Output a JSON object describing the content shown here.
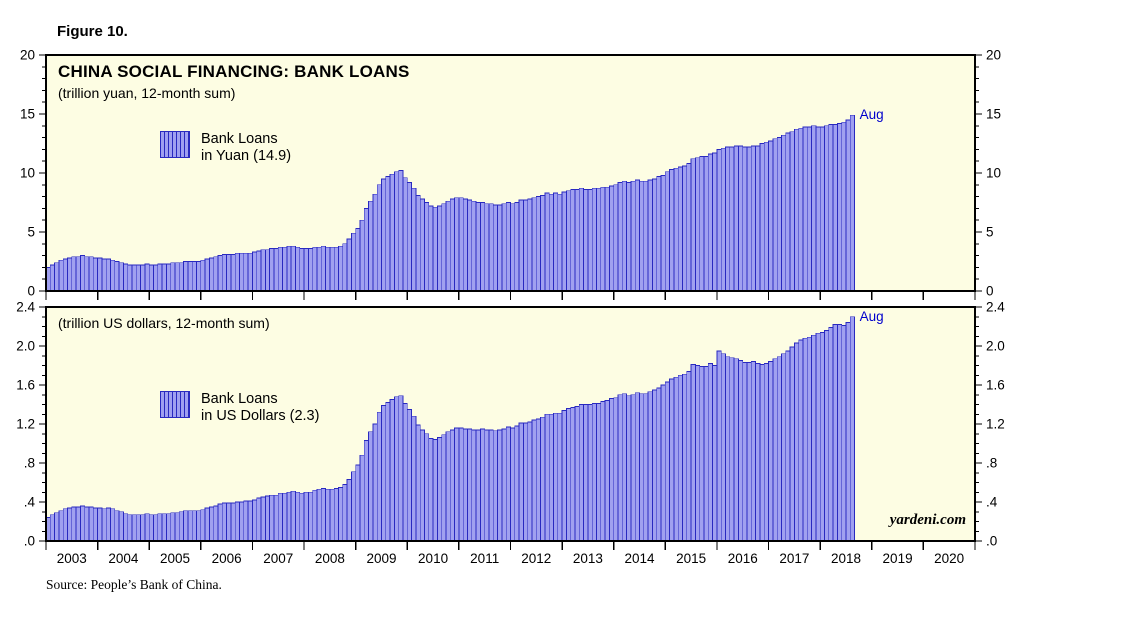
{
  "figure_label": "Figure 10.",
  "source_note": "Source: People’s Bank of China.",
  "watermark": "yardeni.com",
  "colors": {
    "panel_background": "#FDFDE3",
    "bar_fill": "#A0A0F0",
    "bar_border": "#2929C0",
    "annotation_blue": "#0000CC"
  },
  "chart_data": [
    {
      "type": "bar",
      "title": "CHINA SOCIAL FINANCING: BANK LOANS",
      "subtitle": "(trillion yuan, 12-month sum)",
      "legend_lines": [
        "Bank Loans",
        "in Yuan (14.9)"
      ],
      "annotation": "Aug",
      "ylabel": "trillion yuan, 12-month sum",
      "ylim": [
        0,
        20
      ],
      "yticks": [
        0,
        5,
        10,
        15,
        20
      ],
      "ytick_labels": [
        "0",
        "5",
        "10",
        "15",
        "20"
      ],
      "y_minor_step": 1,
      "grid": false,
      "legend_position": "upper-left-inside",
      "x_start": "2003-01",
      "x_axis_end": "2021-01",
      "frequency": "monthly",
      "latest_point": {
        "date": "2018-08",
        "value": 14.9
      },
      "xtick_labels": [
        "2003",
        "2004",
        "2005",
        "2006",
        "2007",
        "2008",
        "2009",
        "2010",
        "2011",
        "2012",
        "2013",
        "2014",
        "2015",
        "2016",
        "2017",
        "2018",
        "2019",
        "2020"
      ],
      "values": [
        2.0,
        2.2,
        2.4,
        2.6,
        2.7,
        2.8,
        2.9,
        2.9,
        3.0,
        2.9,
        2.9,
        2.8,
        2.8,
        2.7,
        2.7,
        2.6,
        2.5,
        2.4,
        2.3,
        2.2,
        2.2,
        2.2,
        2.2,
        2.3,
        2.2,
        2.2,
        2.3,
        2.3,
        2.3,
        2.4,
        2.4,
        2.4,
        2.5,
        2.5,
        2.5,
        2.5,
        2.6,
        2.7,
        2.8,
        2.9,
        3.0,
        3.1,
        3.1,
        3.1,
        3.2,
        3.2,
        3.2,
        3.2,
        3.3,
        3.4,
        3.5,
        3.5,
        3.6,
        3.6,
        3.7,
        3.7,
        3.8,
        3.8,
        3.7,
        3.6,
        3.6,
        3.6,
        3.7,
        3.7,
        3.8,
        3.7,
        3.7,
        3.7,
        3.8,
        4.0,
        4.4,
        4.9,
        5.3,
        6.0,
        7.0,
        7.6,
        8.2,
        9.0,
        9.5,
        9.7,
        9.9,
        10.1,
        10.2,
        9.6,
        9.2,
        8.7,
        8.1,
        7.8,
        7.5,
        7.2,
        7.1,
        7.2,
        7.4,
        7.6,
        7.8,
        7.9,
        7.9,
        7.8,
        7.7,
        7.6,
        7.5,
        7.5,
        7.4,
        7.4,
        7.3,
        7.3,
        7.4,
        7.5,
        7.4,
        7.5,
        7.7,
        7.7,
        7.8,
        7.9,
        8.0,
        8.1,
        8.3,
        8.2,
        8.3,
        8.2,
        8.4,
        8.5,
        8.6,
        8.6,
        8.7,
        8.6,
        8.6,
        8.7,
        8.7,
        8.8,
        8.8,
        8.9,
        9.0,
        9.2,
        9.3,
        9.2,
        9.3,
        9.4,
        9.3,
        9.3,
        9.4,
        9.5,
        9.7,
        9.8,
        10.1,
        10.3,
        10.4,
        10.5,
        10.6,
        10.8,
        11.2,
        11.3,
        11.4,
        11.4,
        11.6,
        11.7,
        12.0,
        12.1,
        12.2,
        12.2,
        12.3,
        12.3,
        12.2,
        12.2,
        12.3,
        12.3,
        12.5,
        12.6,
        12.7,
        12.9,
        13.0,
        13.2,
        13.4,
        13.5,
        13.7,
        13.8,
        13.9,
        13.9,
        14.0,
        13.9,
        13.9,
        14.0,
        14.1,
        14.1,
        14.2,
        14.3,
        14.5,
        14.9
      ]
    },
    {
      "type": "bar",
      "title": "",
      "subtitle": "(trillion US dollars, 12-month sum)",
      "legend_lines": [
        "Bank Loans",
        "in US Dollars (2.3)"
      ],
      "annotation": "Aug",
      "ylabel": "trillion US dollars, 12-month sum",
      "ylim": [
        0,
        2.4
      ],
      "yticks": [
        0,
        0.4,
        0.8,
        1.2,
        1.6,
        2.0,
        2.4
      ],
      "ytick_labels": [
        ".0",
        ".4",
        ".8",
        "1.2",
        "1.6",
        "2.0",
        "2.4"
      ],
      "y_minor_step": 0.1,
      "grid": false,
      "legend_position": "upper-left-inside",
      "x_start": "2003-01",
      "x_axis_end": "2021-01",
      "frequency": "monthly",
      "latest_point": {
        "date": "2018-08",
        "value": 2.3
      },
      "xtick_labels": [
        "2003",
        "2004",
        "2005",
        "2006",
        "2007",
        "2008",
        "2009",
        "2010",
        "2011",
        "2012",
        "2013",
        "2014",
        "2015",
        "2016",
        "2017",
        "2018",
        "2019",
        "2020"
      ],
      "values": [
        0.24,
        0.27,
        0.29,
        0.31,
        0.33,
        0.34,
        0.35,
        0.35,
        0.36,
        0.35,
        0.35,
        0.34,
        0.34,
        0.33,
        0.34,
        0.33,
        0.31,
        0.3,
        0.28,
        0.27,
        0.27,
        0.27,
        0.27,
        0.28,
        0.27,
        0.27,
        0.28,
        0.28,
        0.28,
        0.29,
        0.29,
        0.3,
        0.31,
        0.31,
        0.31,
        0.31,
        0.32,
        0.34,
        0.35,
        0.36,
        0.38,
        0.39,
        0.39,
        0.39,
        0.4,
        0.4,
        0.41,
        0.41,
        0.42,
        0.44,
        0.45,
        0.46,
        0.47,
        0.47,
        0.49,
        0.49,
        0.5,
        0.51,
        0.5,
        0.49,
        0.5,
        0.5,
        0.52,
        0.53,
        0.54,
        0.53,
        0.53,
        0.54,
        0.55,
        0.58,
        0.63,
        0.71,
        0.78,
        0.88,
        1.03,
        1.12,
        1.2,
        1.32,
        1.39,
        1.42,
        1.45,
        1.48,
        1.49,
        1.41,
        1.35,
        1.28,
        1.19,
        1.14,
        1.1,
        1.05,
        1.04,
        1.06,
        1.09,
        1.12,
        1.14,
        1.16,
        1.16,
        1.15,
        1.15,
        1.14,
        1.14,
        1.15,
        1.14,
        1.14,
        1.13,
        1.14,
        1.15,
        1.17,
        1.16,
        1.18,
        1.21,
        1.21,
        1.22,
        1.24,
        1.25,
        1.27,
        1.3,
        1.3,
        1.31,
        1.31,
        1.34,
        1.36,
        1.37,
        1.38,
        1.4,
        1.4,
        1.4,
        1.41,
        1.41,
        1.43,
        1.44,
        1.46,
        1.47,
        1.5,
        1.51,
        1.49,
        1.5,
        1.52,
        1.51,
        1.51,
        1.53,
        1.55,
        1.57,
        1.6,
        1.63,
        1.66,
        1.68,
        1.7,
        1.71,
        1.74,
        1.81,
        1.8,
        1.79,
        1.79,
        1.82,
        1.8,
        1.95,
        1.92,
        1.89,
        1.88,
        1.87,
        1.85,
        1.83,
        1.83,
        1.84,
        1.82,
        1.81,
        1.82,
        1.84,
        1.87,
        1.89,
        1.92,
        1.95,
        1.99,
        2.03,
        2.06,
        2.08,
        2.09,
        2.11,
        2.13,
        2.14,
        2.16,
        2.19,
        2.22,
        2.22,
        2.21,
        2.24,
        2.3
      ]
    }
  ]
}
